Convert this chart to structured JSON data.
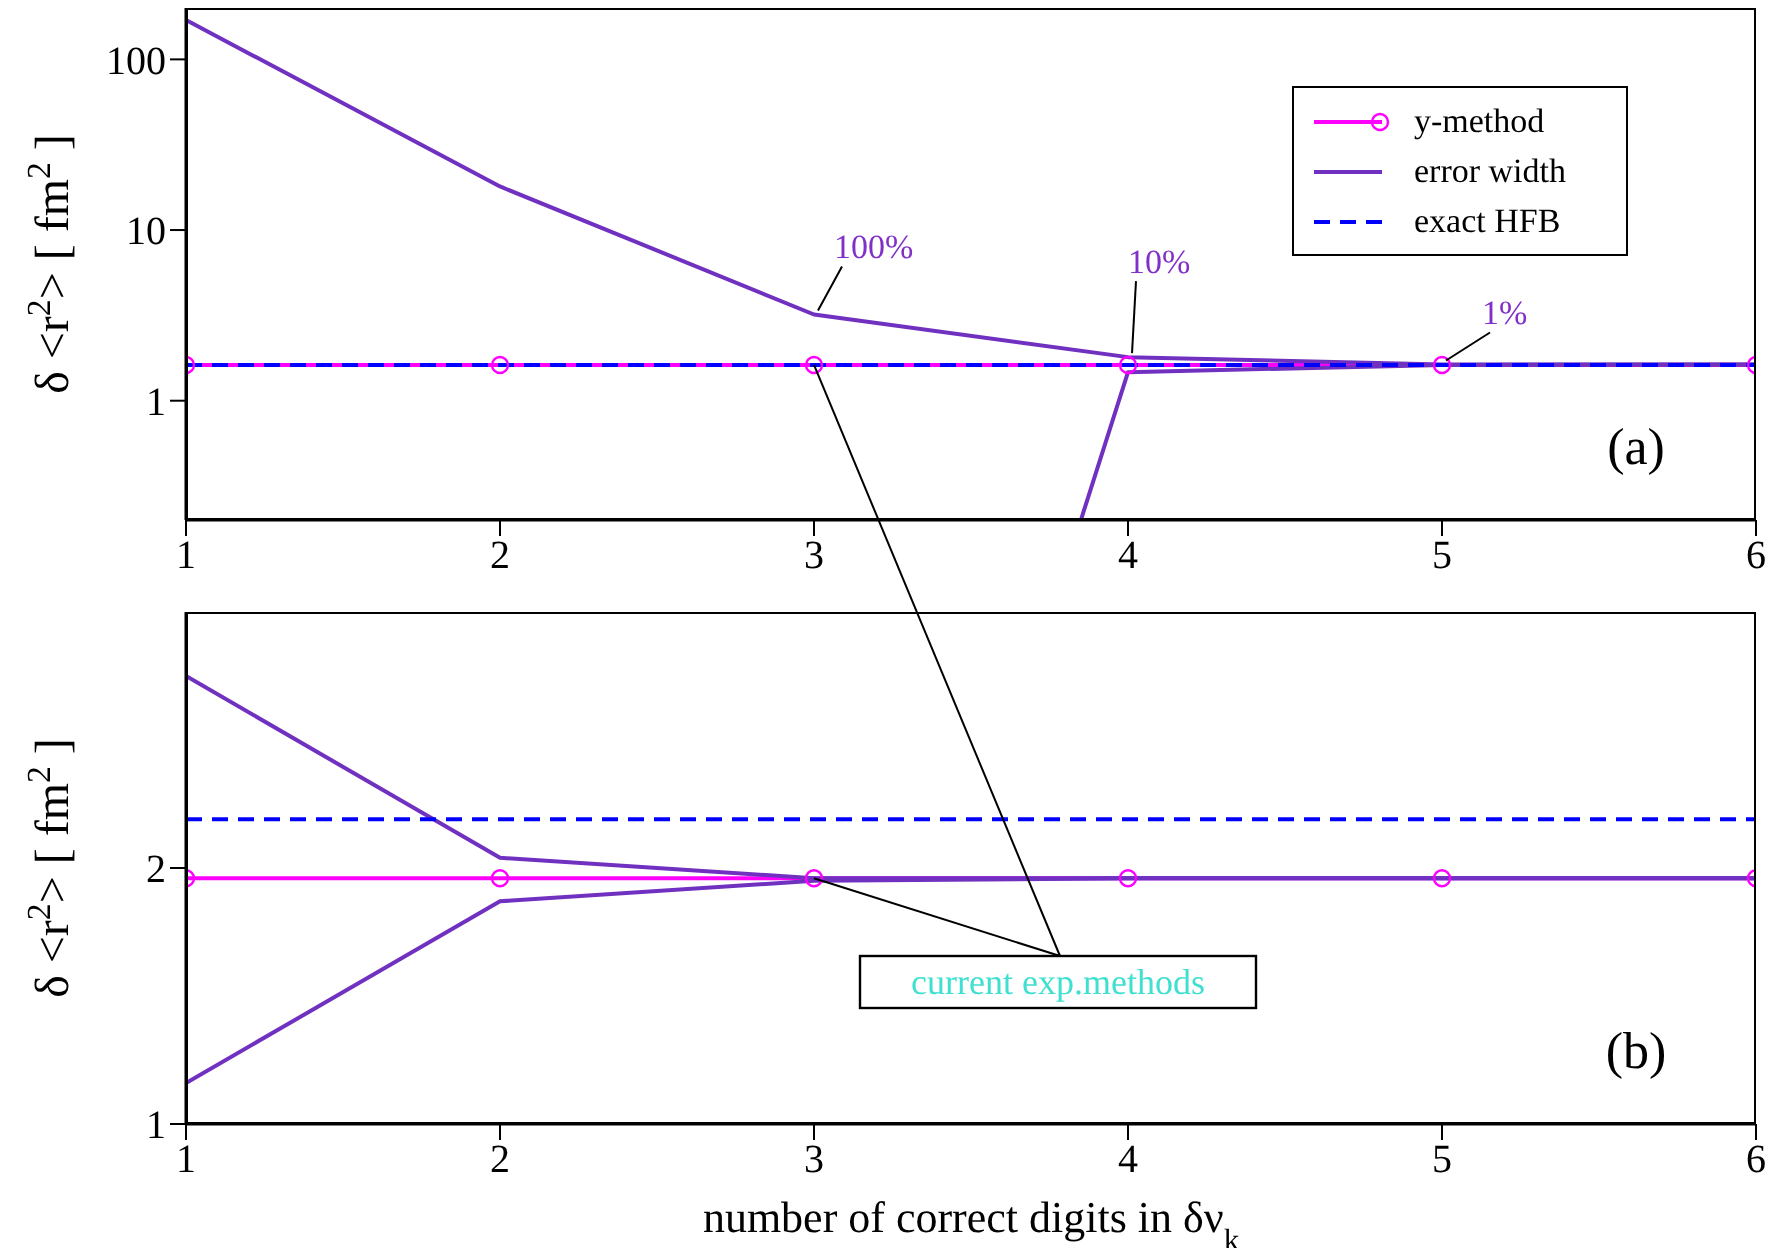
{
  "chart_data": [
    {
      "type": "line",
      "x": [
        1,
        2,
        3,
        4,
        5,
        6
      ],
      "xlim": [
        1,
        6
      ],
      "xticks": [
        1,
        2,
        3,
        4,
        5,
        6
      ],
      "ylim": [
        0.2,
        200
      ],
      "yticks": [
        1,
        10,
        100
      ],
      "log": "y",
      "ylabel": "δ <r$^{2}$> [ fm$^{2}$ ]",
      "legend": "top right",
      "series": [
        {
          "name": "y-method",
          "color": "#ff00ff",
          "marker": "circle",
          "values": [
            1.62,
            1.62,
            1.62,
            1.62,
            1.62,
            1.62
          ]
        },
        {
          "name": "error width",
          "color": "#7030c0",
          "values": [
            170,
            18,
            3.2,
            1.8,
            1.63,
            1.63
          ]
        },
        {
          "color": "#7030c0",
          "x": [
            3.85,
            4,
            5,
            6
          ],
          "values": [
            0.2,
            1.47,
            1.62,
            1.63
          ]
        },
        {
          "name": "exact HFB",
          "color": "#0000ff",
          "line_style": "dashed",
          "values": [
            1.62,
            1.62,
            1.62,
            1.62,
            1.62,
            1.62
          ]
        }
      ],
      "annotations": [
        {
          "text": "100%",
          "x": 3,
          "y": 3.2
        },
        {
          "text": "10%",
          "x": 4,
          "y": 1.8
        },
        {
          "text": "1%",
          "x": 5,
          "y": 1.63
        },
        "(a)"
      ]
    },
    {
      "type": "line",
      "x": [
        1,
        2,
        3,
        4,
        5,
        6
      ],
      "xlim": [
        1,
        6
      ],
      "xticks": [
        1,
        2,
        3,
        4,
        5,
        6
      ],
      "ylim": [
        1,
        3
      ],
      "yticks": [
        1,
        2
      ],
      "ylabel": "δ <r$^{2}$> [ fm$^{2}$ ]",
      "xlabel": "number of correct digits in δν$_{k}$",
      "series": [
        {
          "color": "#ff00ff",
          "marker": "circle",
          "values": [
            1.96,
            1.96,
            1.96,
            1.96,
            1.96,
            1.96
          ]
        },
        {
          "color": "#7030c0",
          "values": [
            2.75,
            2.04,
            1.96,
            1.96,
            1.96,
            1.96
          ]
        },
        {
          "color": "#7030c0",
          "values": [
            1.16,
            1.87,
            1.95,
            1.96,
            1.96,
            1.96
          ]
        },
        {
          "color": "#0000ff",
          "line_style": "dashed",
          "values": [
            2.19,
            2.19,
            2.19,
            2.19,
            2.19,
            2.19
          ]
        }
      ],
      "annotations": [
        {
          "text": "current exp.methods",
          "x": 3,
          "y": 1.96
        },
        "(b)"
      ]
    }
  ]
}
